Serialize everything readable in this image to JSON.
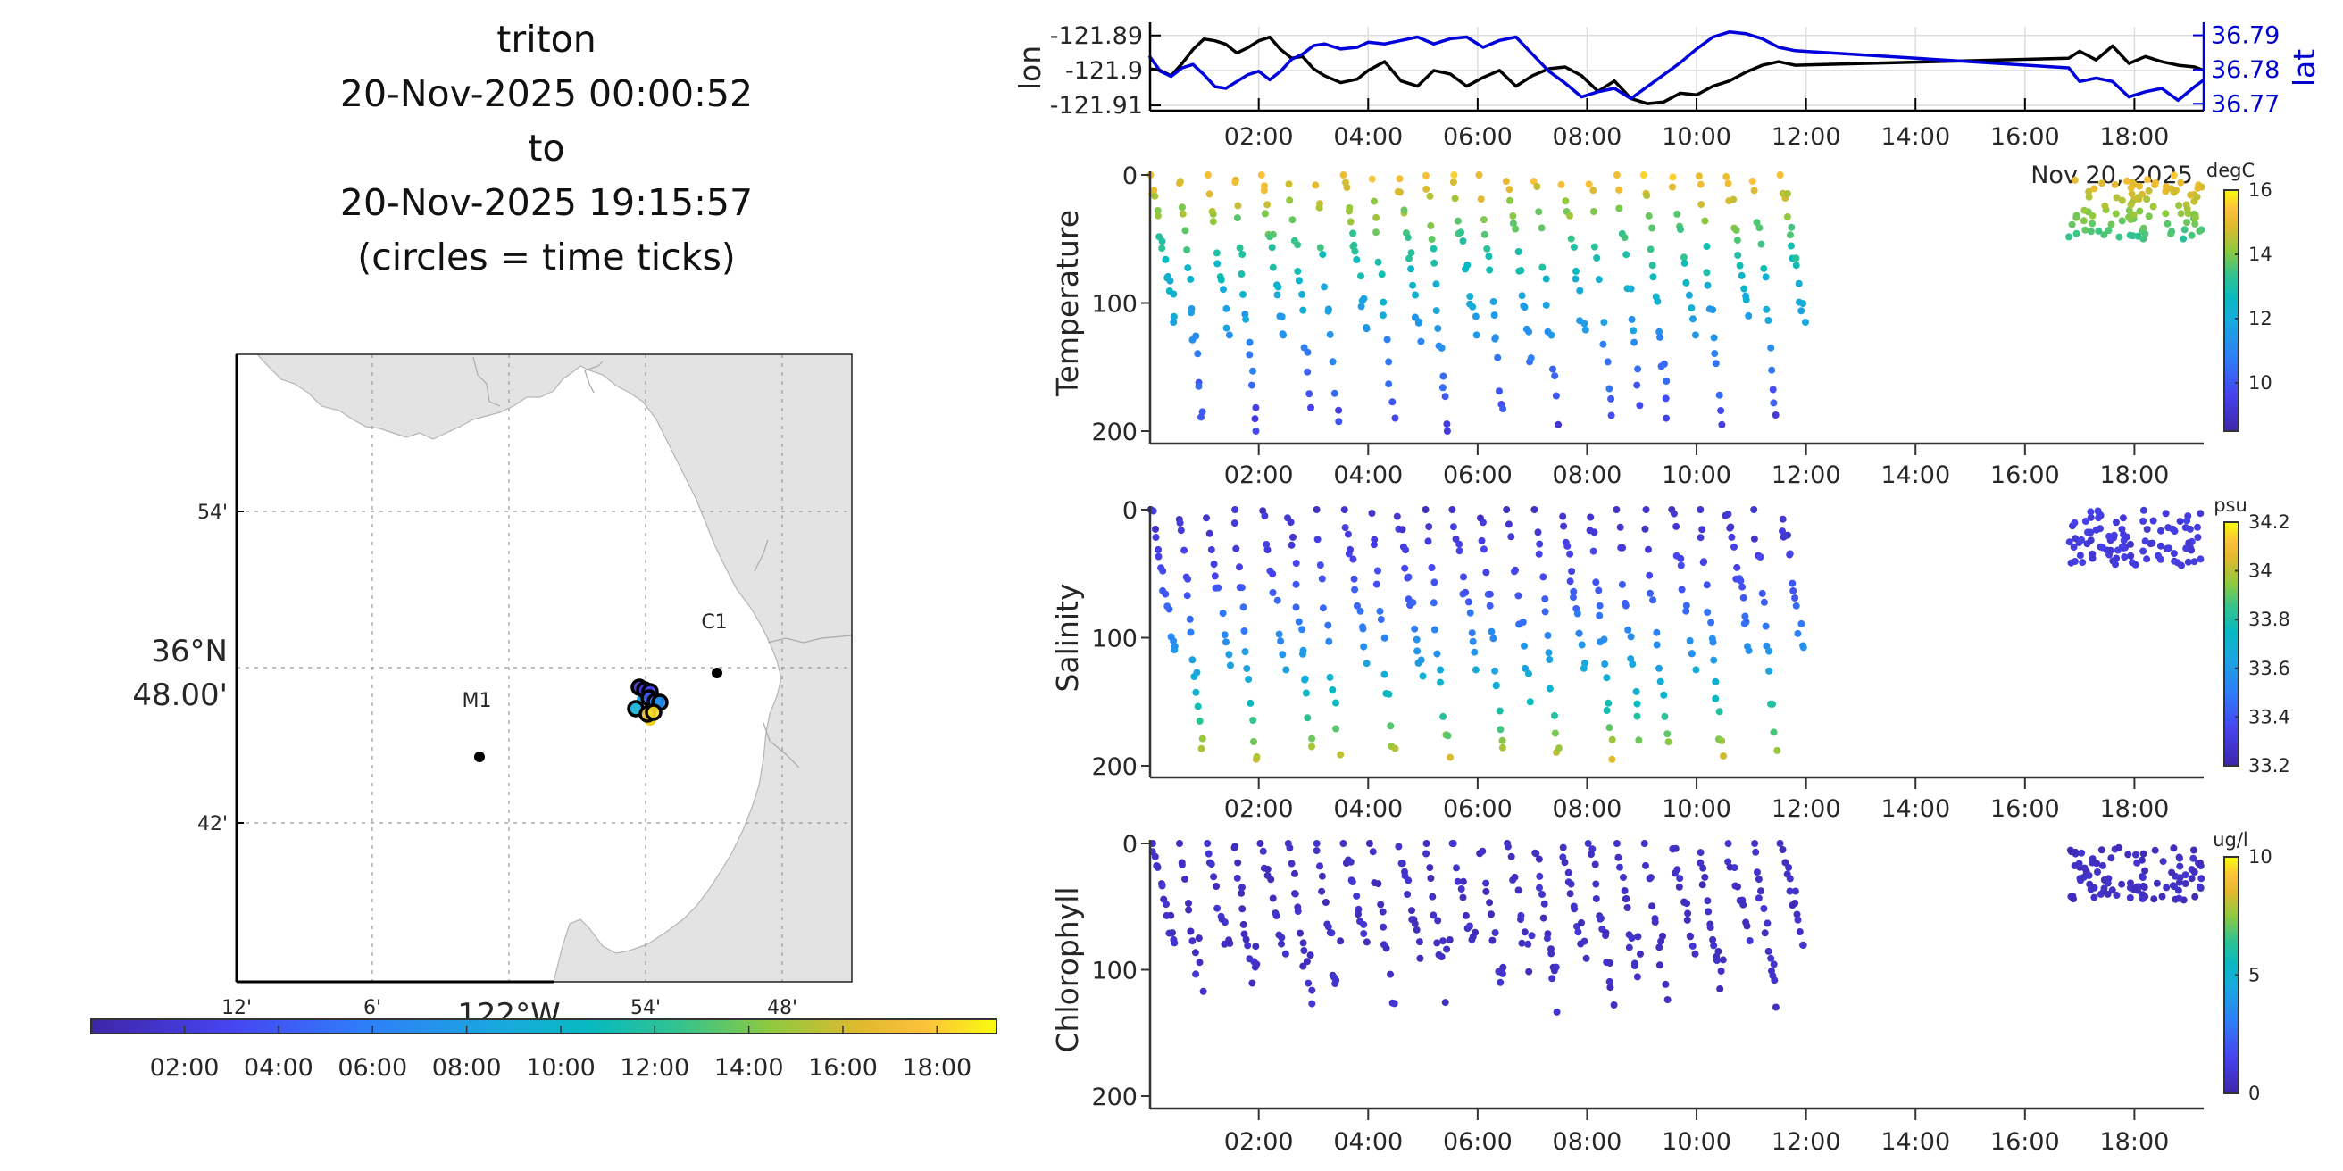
{
  "title": {
    "lines": [
      "triton",
      "20-Nov-2025 00:00:52",
      "to",
      "20-Nov-2025 19:15:57",
      "(circles = time ticks)"
    ]
  },
  "map": {
    "lon_ticks": [
      "12'",
      "6'",
      "54'",
      "48'"
    ],
    "lon_label": "122°W",
    "lat_ticks": [
      "54'",
      "48.00'",
      "42'"
    ],
    "lat_label": "36°N",
    "lon_range_deg": [
      -122.2,
      -121.77
    ],
    "lat_range_deg": [
      36.64,
      37.0
    ],
    "grid_lon_deg": [
      -122.2,
      -122.1,
      -122.0,
      -121.9,
      -121.8
    ],
    "grid_lat_deg": [
      36.9,
      36.8,
      36.7
    ],
    "stations": [
      {
        "name": "M1",
        "lon": -122.03,
        "lat": 36.747
      },
      {
        "name": "C1",
        "lon": -121.847,
        "lat": 36.797
      }
    ],
    "track_circles": [
      {
        "lon": -121.905,
        "lat": 36.792,
        "t": 0.5
      },
      {
        "lon": -121.902,
        "lat": 36.791,
        "t": 1.5
      },
      {
        "lon": -121.898,
        "lat": 36.79,
        "t": 3.0
      },
      {
        "lon": -121.9,
        "lat": 36.789,
        "t": 4.0
      },
      {
        "lon": -121.894,
        "lat": 36.782,
        "t": 6.0
      },
      {
        "lon": -121.892,
        "lat": 36.783,
        "t": 7.0
      },
      {
        "lon": -121.907,
        "lat": 36.78,
        "t": 9.5
      },
      {
        "lon": -121.899,
        "lat": 36.779,
        "t": 17.0
      },
      {
        "lon": -121.896,
        "lat": 36.781,
        "t": 18.5
      }
    ],
    "land_color": "#e3e3e3"
  },
  "time_colorbar": {
    "ticks": [
      "02:00",
      "04:00",
      "06:00",
      "08:00",
      "10:00",
      "12:00",
      "14:00",
      "16:00",
      "18:00"
    ],
    "range_hours": [
      0.0145,
      19.266
    ]
  },
  "chart_data": [
    {
      "type": "line",
      "title": "",
      "xlabel": "",
      "ylabel": "lon",
      "y2label": "lat",
      "xlim_hours": [
        0.0145,
        19.266
      ],
      "x_ticks": [
        "02:00",
        "04:00",
        "06:00",
        "08:00",
        "10:00",
        "12:00",
        "14:00",
        "16:00",
        "18:00"
      ],
      "x_date_label": "Nov 20, 2025",
      "ylim": [
        -121.911,
        -121.8875
      ],
      "y_ticks": [
        "-121.89",
        "-121.9",
        "-121.91"
      ],
      "y2lim": [
        36.7685,
        36.7925
      ],
      "y2_ticks": [
        "36.79",
        "36.78",
        "36.77"
      ],
      "grid": true,
      "series": [
        {
          "name": "lon",
          "color": "#000000",
          "x": [
            0.0,
            0.2,
            0.4,
            0.6,
            0.8,
            1.0,
            1.2,
            1.4,
            1.6,
            1.8,
            2.0,
            2.2,
            2.4,
            2.6,
            2.8,
            3.0,
            3.2,
            3.5,
            3.8,
            4.0,
            4.3,
            4.6,
            4.9,
            5.2,
            5.5,
            5.8,
            6.1,
            6.4,
            6.7,
            7.0,
            7.3,
            7.6,
            7.9,
            8.2,
            8.5,
            8.8,
            9.1,
            9.4,
            9.7,
            10.0,
            10.3,
            10.6,
            10.9,
            11.2,
            11.5,
            11.8,
            16.8,
            17.0,
            17.3,
            17.6,
            17.9,
            18.2,
            18.5,
            18.8,
            19.1,
            19.27
          ],
          "y": [
            -121.8995,
            -121.9,
            -121.9015,
            -121.898,
            -121.894,
            -121.891,
            -121.8915,
            -121.8925,
            -121.895,
            -121.8935,
            -121.8915,
            -121.8905,
            -121.894,
            -121.8965,
            -121.896,
            -121.8995,
            -121.9015,
            -121.9035,
            -121.9025,
            -121.9,
            -121.8975,
            -121.903,
            -121.9045,
            -121.9,
            -121.901,
            -121.9045,
            -121.902,
            -121.9,
            -121.9045,
            -121.9015,
            -121.8995,
            -121.899,
            -121.9015,
            -121.906,
            -121.903,
            -121.908,
            -121.9095,
            -121.909,
            -121.9065,
            -121.907,
            -121.9045,
            -121.903,
            -121.9005,
            -121.8985,
            -121.8975,
            -121.8985,
            -121.8965,
            -121.8945,
            -121.897,
            -121.893,
            -121.898,
            -121.896,
            -121.8975,
            -121.8985,
            -121.899,
            -121.9
          ],
          "axis": "left"
        },
        {
          "name": "lat",
          "color": "#0000dd",
          "x": [
            0.0,
            0.2,
            0.4,
            0.6,
            0.8,
            1.0,
            1.2,
            1.4,
            1.6,
            1.8,
            2.0,
            2.2,
            2.4,
            2.6,
            2.8,
            3.0,
            3.2,
            3.5,
            3.8,
            4.0,
            4.3,
            4.6,
            4.9,
            5.2,
            5.5,
            5.8,
            6.1,
            6.4,
            6.7,
            7.0,
            7.3,
            7.6,
            7.9,
            8.2,
            8.5,
            8.8,
            9.1,
            9.4,
            9.7,
            10.0,
            10.3,
            10.6,
            10.9,
            11.2,
            11.5,
            11.8,
            16.8,
            17.0,
            17.3,
            17.6,
            17.9,
            18.2,
            18.5,
            18.8,
            19.1,
            19.27
          ],
          "y": [
            36.784,
            36.7795,
            36.778,
            36.7805,
            36.7815,
            36.7785,
            36.775,
            36.7745,
            36.7765,
            36.7785,
            36.7795,
            36.777,
            36.7795,
            36.783,
            36.7845,
            36.787,
            36.7875,
            36.786,
            36.7865,
            36.788,
            36.7875,
            36.7885,
            36.7895,
            36.7875,
            36.789,
            36.7895,
            36.7865,
            36.7885,
            36.7895,
            36.7845,
            36.7795,
            36.776,
            36.772,
            36.7735,
            36.7745,
            36.7715,
            36.775,
            36.7785,
            36.782,
            36.786,
            36.7895,
            36.791,
            36.7905,
            36.789,
            36.7865,
            36.7855,
            36.7805,
            36.7765,
            36.7775,
            36.7765,
            36.772,
            36.7735,
            36.7745,
            36.771,
            36.775,
            36.777
          ],
          "axis": "right"
        }
      ]
    },
    {
      "type": "scatter",
      "ylabel": "Temperature",
      "colorbar_units": "degC",
      "colorbar_ticks": [
        "16",
        "14",
        "12",
        "10"
      ],
      "clim": [
        8.5,
        16
      ],
      "ylim": [
        0,
        210
      ],
      "y_ticks": [
        "0",
        "100",
        "200"
      ],
      "xlim_hours": [
        0.0145,
        19.266
      ],
      "x_ticks": [
        "02:00",
        "04:00",
        "06:00",
        "08:00",
        "10:00",
        "12:00",
        "14:00",
        "16:00",
        "18:00"
      ],
      "profiles": {
        "cast_times_hours": [
          0.05,
          0.55,
          1.05,
          1.55,
          2.05,
          2.55,
          3.05,
          3.55,
          4.05,
          4.55,
          5.05,
          5.55,
          6.05,
          6.55,
          7.05,
          7.55,
          8.05,
          8.55,
          9.05,
          9.55,
          10.05,
          10.55,
          11.05,
          11.55
        ],
        "max_depth_m": [
          115,
          195,
          125,
          200,
          125,
          185,
          195,
          120,
          195,
          130,
          200,
          125,
          190,
          150,
          195,
          130,
          195,
          180,
          190,
          125,
          195,
          110,
          190,
          115
        ]
      },
      "survey_cluster": {
        "time_range_hours": [
          16.8,
          19.25
        ],
        "depth_range_m": [
          0,
          50
        ],
        "count": 95
      },
      "note": "value color increases toward surface: ~15 degC at 0 m, ~9.5 degC at 200 m"
    },
    {
      "type": "scatter",
      "ylabel": "Salinity",
      "colorbar_units": "psu",
      "colorbar_ticks": [
        "34.2",
        "34",
        "33.8",
        "33.6",
        "33.4",
        "33.2"
      ],
      "clim": [
        33.2,
        34.2
      ],
      "ylim": [
        0,
        210
      ],
      "y_ticks": [
        "0",
        "100",
        "200"
      ],
      "xlim_hours": [
        0.0145,
        19.266
      ],
      "x_ticks": [
        "02:00",
        "04:00",
        "06:00",
        "08:00",
        "10:00",
        "12:00",
        "14:00",
        "16:00",
        "18:00"
      ],
      "survey_cluster": {
        "time_range_hours": [
          16.8,
          19.25
        ],
        "depth_range_m": [
          0,
          45
        ],
        "count": 95
      },
      "note": "~33.3 psu at surface, ~34.0 psu at 200 m"
    },
    {
      "type": "scatter",
      "ylabel": "Chlorophyll",
      "colorbar_units": "ug/l",
      "colorbar_ticks": [
        "10",
        "5",
        "0"
      ],
      "clim": [
        0,
        10
      ],
      "ylim": [
        0,
        210
      ],
      "y_ticks": [
        "0",
        "100",
        "200"
      ],
      "xlim_hours": [
        0.0145,
        19.266
      ],
      "x_ticks": [
        "02:00",
        "04:00",
        "06:00",
        "08:00",
        "10:00",
        "12:00",
        "14:00",
        "16:00",
        "18:00"
      ],
      "survey_cluster": {
        "time_range_hours": [
          16.8,
          19.25
        ],
        "depth_range_m": [
          0,
          45
        ],
        "count": 95
      },
      "note": "all values near 0-1 ug/l; samples limited to top ~140 m"
    }
  ]
}
